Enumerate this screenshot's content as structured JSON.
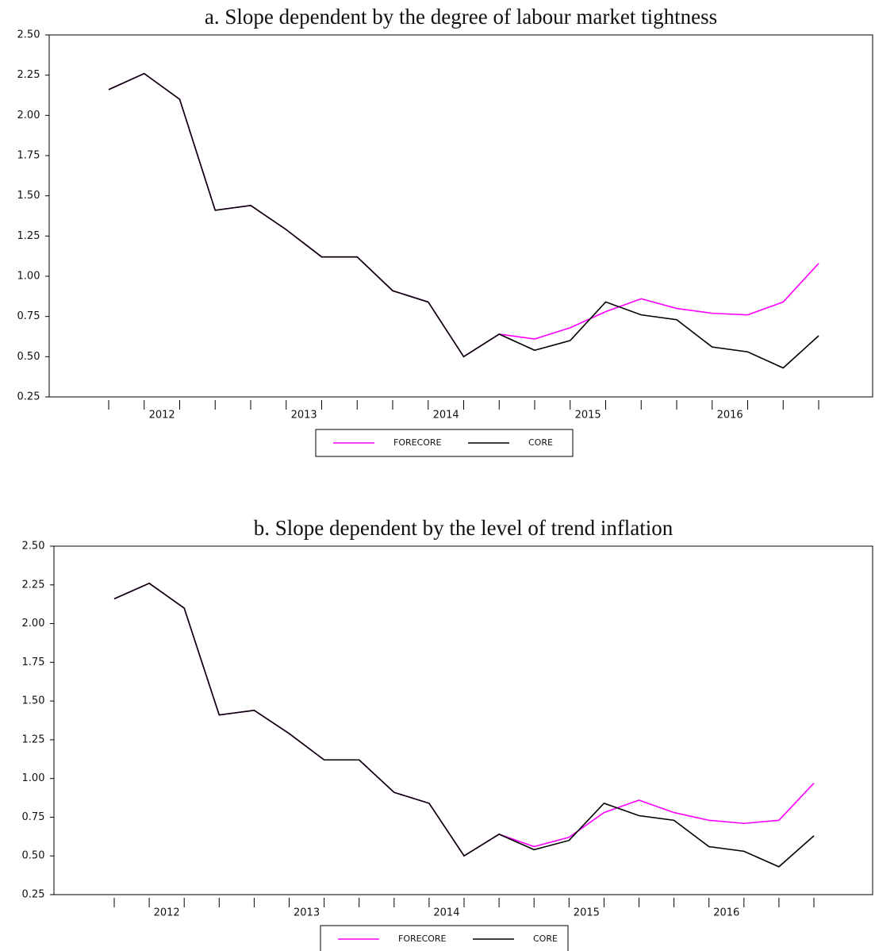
{
  "chart_data": [
    {
      "type": "line",
      "title": "a. Slope dependent by the degree of labour market tightness",
      "categories": [
        null,
        null,
        null,
        null,
        null,
        null,
        null,
        null,
        null,
        null,
        null,
        null,
        null,
        null,
        null,
        null,
        null,
        null,
        null,
        null,
        null
      ],
      "xticks": [
        {
          "value": 1.5,
          "label": "2012"
        },
        {
          "value": 5.5,
          "label": "2013"
        },
        {
          "value": 9.5,
          "label": "2014"
        },
        {
          "value": 13.5,
          "label": "2015"
        },
        {
          "value": 17.5,
          "label": "2016"
        }
      ],
      "ylim": [
        0.25,
        2.5
      ],
      "yticks": [
        {
          "value": 0.25,
          "label": "0.25"
        },
        {
          "value": 0.5,
          "label": "0.50"
        },
        {
          "value": 0.75,
          "label": "0.75"
        },
        {
          "value": 1.0,
          "label": "1.00"
        },
        {
          "value": 1.25,
          "label": "1.25"
        },
        {
          "value": 1.5,
          "label": "1.50"
        },
        {
          "value": 1.75,
          "label": "1.75"
        },
        {
          "value": 2.0,
          "label": "2.00"
        },
        {
          "value": 2.25,
          "label": "2.25"
        },
        {
          "value": 2.5,
          "label": "2.50"
        }
      ],
      "series": [
        {
          "name": "FORECORE",
          "color": "#ff00ff",
          "values": [
            2.16,
            2.26,
            2.1,
            1.41,
            1.44,
            1.29,
            1.12,
            1.12,
            0.91,
            0.84,
            0.5,
            0.64,
            0.61,
            0.68,
            0.78,
            0.86,
            0.8,
            0.77,
            0.76,
            0.84,
            1.08
          ]
        },
        {
          "name": "CORE",
          "color": "#000000",
          "values": [
            2.16,
            2.26,
            2.1,
            1.41,
            1.44,
            1.29,
            1.12,
            1.12,
            0.91,
            0.84,
            0.5,
            0.64,
            0.54,
            0.6,
            0.84,
            0.76,
            0.73,
            0.56,
            0.53,
            0.43,
            0.63
          ]
        }
      ]
    },
    {
      "type": "line",
      "title": "b. Slope dependent by the level of trend inflation",
      "categories": [
        null,
        null,
        null,
        null,
        null,
        null,
        null,
        null,
        null,
        null,
        null,
        null,
        null,
        null,
        null,
        null,
        null,
        null,
        null,
        null,
        null
      ],
      "xticks": [
        {
          "value": 1.5,
          "label": "2012"
        },
        {
          "value": 5.5,
          "label": "2013"
        },
        {
          "value": 9.5,
          "label": "2014"
        },
        {
          "value": 13.5,
          "label": "2015"
        },
        {
          "value": 17.5,
          "label": "2016"
        }
      ],
      "ylim": [
        0.25,
        2.5
      ],
      "yticks": [
        {
          "value": 0.25,
          "label": "0.25"
        },
        {
          "value": 0.5,
          "label": "0.50"
        },
        {
          "value": 0.75,
          "label": "0.75"
        },
        {
          "value": 1.0,
          "label": "1.00"
        },
        {
          "value": 1.25,
          "label": "1.25"
        },
        {
          "value": 1.5,
          "label": "1.50"
        },
        {
          "value": 1.75,
          "label": "1.75"
        },
        {
          "value": 2.0,
          "label": "2.00"
        },
        {
          "value": 2.25,
          "label": "2.25"
        },
        {
          "value": 2.5,
          "label": "2.50"
        }
      ],
      "series": [
        {
          "name": "FORECORE",
          "color": "#ff00ff",
          "values": [
            2.16,
            2.26,
            2.1,
            1.41,
            1.44,
            1.29,
            1.12,
            1.12,
            0.91,
            0.84,
            0.5,
            0.64,
            0.56,
            0.62,
            0.78,
            0.86,
            0.78,
            0.73,
            0.71,
            0.73,
            0.97
          ]
        },
        {
          "name": "CORE",
          "color": "#000000",
          "values": [
            2.16,
            2.26,
            2.1,
            1.41,
            1.44,
            1.29,
            1.12,
            1.12,
            0.91,
            0.84,
            0.5,
            0.64,
            0.54,
            0.6,
            0.84,
            0.76,
            0.73,
            0.56,
            0.53,
            0.43,
            0.63
          ]
        }
      ]
    }
  ]
}
